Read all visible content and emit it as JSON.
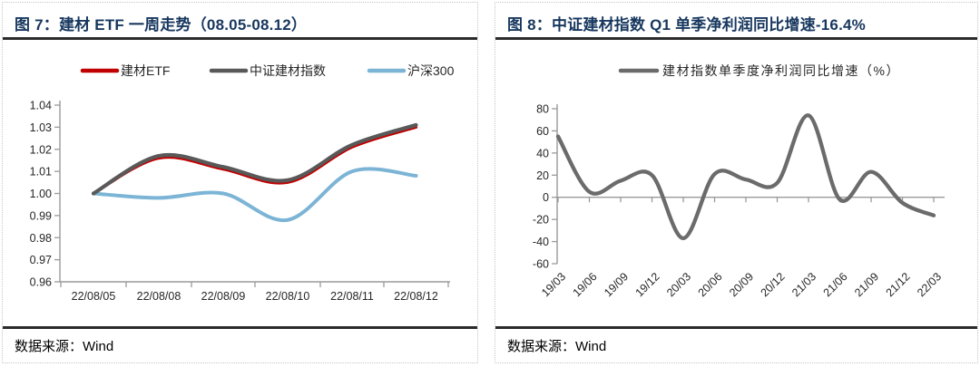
{
  "page": {
    "background": "#ffffff"
  },
  "panels": [
    {
      "title": "图 7：建材 ETF 一周走势（08.05-08.12）",
      "source": "数据来源：Wind"
    },
    {
      "title": "图 8：中证建材指数 Q1 单季净利润同比增速-16.4%",
      "source": "数据来源：Wind"
    }
  ],
  "chart_data": [
    {
      "type": "line",
      "title": "建材 ETF 一周走势（08.05-08.12）",
      "categories": [
        "22/08/05",
        "22/08/08",
        "22/08/09",
        "22/08/10",
        "22/08/11",
        "22/08/12"
      ],
      "series": [
        {
          "name": "建材ETF",
          "color": "#c00000",
          "values": [
            1.0,
            1.016,
            1.011,
            1.005,
            1.021,
            1.03
          ]
        },
        {
          "name": "中证建材指数",
          "color": "#595959",
          "values": [
            1.0,
            1.017,
            1.012,
            1.006,
            1.022,
            1.031
          ]
        },
        {
          "name": "沪深300",
          "color": "#7cb4d6",
          "values": [
            1.0,
            0.998,
            1.0,
            0.988,
            1.01,
            1.008
          ]
        }
      ],
      "ylim": [
        0.96,
        1.04
      ],
      "yticks": [
        "1.04",
        "1.03",
        "1.02",
        "1.01",
        "1.00",
        "0.99",
        "0.98",
        "0.97",
        "0.96"
      ],
      "xlabel": "",
      "ylabel": "",
      "grid": false,
      "smooth": true,
      "legend_position": "top"
    },
    {
      "type": "line",
      "title": "中证建材指数 Q1 单季净利润同比增速-16.4%",
      "categories": [
        "19/03",
        "19/06",
        "19/09",
        "19/12",
        "20/03",
        "20/06",
        "20/09",
        "20/12",
        "21/03",
        "21/06",
        "21/09",
        "21/12",
        "22/03"
      ],
      "series": [
        {
          "name": "建材指数单季度净利润同比增速（%）",
          "color": "#6b6b6b",
          "values": [
            55,
            5,
            15,
            20,
            -37,
            21,
            16,
            13,
            74,
            -2,
            23,
            -5,
            -16.4
          ]
        }
      ],
      "ylim": [
        -60,
        80
      ],
      "yticks": [
        "80",
        "60",
        "40",
        "20",
        "0",
        "-20",
        "-40",
        "-60"
      ],
      "x_axis_cross_at": 0,
      "xlabel": "",
      "ylabel": "",
      "grid": false,
      "smooth": true,
      "legend_position": "top"
    }
  ]
}
